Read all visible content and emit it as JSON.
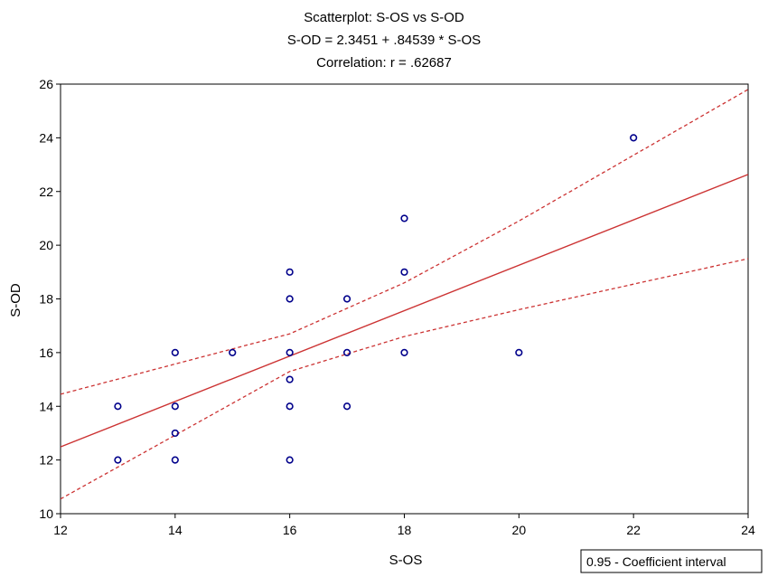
{
  "chart_data": {
    "type": "scatter",
    "title": "Scatterplot: S-OS vs  S-OD",
    "subtitle": "S-OD = 2.3451 + .84539 * S-OS",
    "correlation_text": "Correlation: r =   .62687",
    "xlabel": "S-OS",
    "ylabel": "S-OD",
    "xlim": [
      12,
      24
    ],
    "ylim": [
      10,
      26
    ],
    "xticks": [
      "12",
      "14",
      "16",
      "18",
      "20",
      "22",
      "24"
    ],
    "yticks": [
      "10",
      "12",
      "14",
      "16",
      "18",
      "20",
      "22",
      "24",
      "26"
    ],
    "grid": false,
    "points": [
      [
        13,
        14
      ],
      [
        13,
        12
      ],
      [
        14,
        16
      ],
      [
        14,
        14
      ],
      [
        14,
        13
      ],
      [
        14,
        12
      ],
      [
        15,
        16
      ],
      [
        16,
        19
      ],
      [
        16,
        18
      ],
      [
        16,
        16
      ],
      [
        16,
        15
      ],
      [
        16,
        14
      ],
      [
        16,
        12
      ],
      [
        17,
        18
      ],
      [
        17,
        16
      ],
      [
        17,
        14
      ],
      [
        18,
        21
      ],
      [
        18,
        19
      ],
      [
        18,
        16
      ],
      [
        20,
        16
      ],
      [
        22,
        24
      ]
    ],
    "regression": {
      "intercept": 2.3451,
      "slope": 0.84539
    },
    "confidence_band": {
      "upper": [
        [
          12,
          14.45
        ],
        [
          16,
          16.7
        ],
        [
          18,
          18.6
        ],
        [
          20,
          20.9
        ],
        [
          24,
          25.8
        ]
      ],
      "lower": [
        [
          12,
          10.55
        ],
        [
          16,
          15.3
        ],
        [
          18,
          16.6
        ],
        [
          20,
          17.6
        ],
        [
          24,
          19.5
        ]
      ]
    },
    "legend": {
      "label": "0.95 - Coefficient interval",
      "position": "bottom-right"
    },
    "colors": {
      "points": "#00008b",
      "fit_line": "#cc3333",
      "band": "#cc3333",
      "axes": "#000000"
    }
  }
}
